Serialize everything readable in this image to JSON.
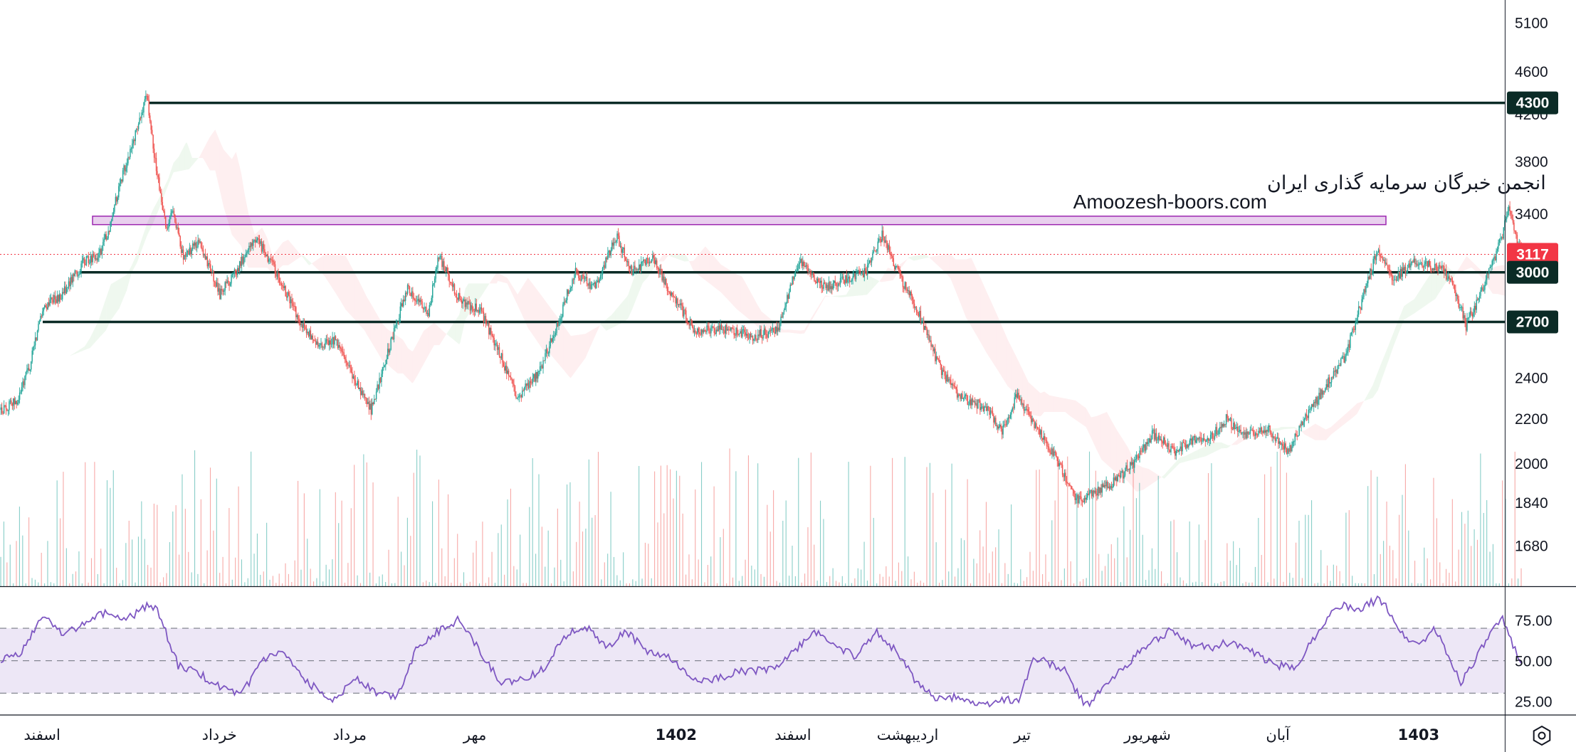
{
  "watermark": {
    "title": "انجمن خبرگان سرمایه گذاری ایران",
    "url": "Amoozesh-boors.com"
  },
  "chart_data": {
    "type": "candlestick",
    "price_axis": {
      "scale": "log",
      "ylim": [
        1540,
        5350
      ],
      "ticks": [
        5100,
        4600,
        4200,
        3800,
        3400,
        2400,
        2200,
        2000,
        1840,
        1680
      ]
    },
    "current_price": {
      "value": 3117,
      "label": "3117",
      "color": "#f23645"
    },
    "levels": [
      {
        "value": 4300,
        "label": "4300",
        "color": "#0b2b26"
      },
      {
        "value": 3000,
        "label": "3000",
        "color": "#0b2b26"
      },
      {
        "value": 2700,
        "label": "2700",
        "color": "#0b2b26"
      }
    ],
    "resistance_zone": {
      "low": 3320,
      "high": 3380,
      "color": "#9c27b0"
    },
    "candle_colors": {
      "up": "#26a69a",
      "down": "#ef5350"
    },
    "keypoints": [
      [
        0,
        2240
      ],
      [
        15,
        2280
      ],
      [
        28,
        2460
      ],
      [
        40,
        2780
      ],
      [
        60,
        2870
      ],
      [
        80,
        3070
      ],
      [
        95,
        3120
      ],
      [
        105,
        3320
      ],
      [
        115,
        3650
      ],
      [
        125,
        3900
      ],
      [
        135,
        4200
      ],
      [
        140,
        4350
      ],
      [
        148,
        3800
      ],
      [
        158,
        3300
      ],
      [
        165,
        3400
      ],
      [
        175,
        3100
      ],
      [
        190,
        3200
      ],
      [
        210,
        2860
      ],
      [
        225,
        3000
      ],
      [
        245,
        3230
      ],
      [
        260,
        3050
      ],
      [
        285,
        2720
      ],
      [
        305,
        2560
      ],
      [
        320,
        2600
      ],
      [
        340,
        2380
      ],
      [
        355,
        2240
      ],
      [
        375,
        2600
      ],
      [
        390,
        2900
      ],
      [
        410,
        2760
      ],
      [
        420,
        3100
      ],
      [
        440,
        2830
      ],
      [
        460,
        2760
      ],
      [
        480,
        2500
      ],
      [
        495,
        2300
      ],
      [
        512,
        2400
      ],
      [
        520,
        2480
      ],
      [
        535,
        2700
      ],
      [
        550,
        3000
      ],
      [
        570,
        2900
      ],
      [
        590,
        3240
      ],
      [
        605,
        3000
      ],
      [
        625,
        3100
      ],
      [
        640,
        2900
      ],
      [
        665,
        2650
      ],
      [
        690,
        2660
      ],
      [
        720,
        2620
      ],
      [
        745,
        2650
      ],
      [
        765,
        3070
      ],
      [
        790,
        2900
      ],
      [
        810,
        2960
      ],
      [
        830,
        3000
      ],
      [
        845,
        3250
      ],
      [
        860,
        3000
      ],
      [
        880,
        2750
      ],
      [
        900,
        2450
      ],
      [
        920,
        2300
      ],
      [
        945,
        2250
      ],
      [
        960,
        2140
      ],
      [
        975,
        2320
      ],
      [
        985,
        2220
      ],
      [
        1000,
        2100
      ],
      [
        1015,
        2000
      ],
      [
        1030,
        1850
      ],
      [
        1045,
        1870
      ],
      [
        1070,
        1930
      ],
      [
        1090,
        2020
      ],
      [
        1105,
        2130
      ],
      [
        1125,
        2050
      ],
      [
        1145,
        2100
      ],
      [
        1160,
        2110
      ],
      [
        1175,
        2200
      ],
      [
        1190,
        2120
      ],
      [
        1215,
        2150
      ],
      [
        1235,
        2050
      ],
      [
        1250,
        2200
      ],
      [
        1270,
        2350
      ],
      [
        1290,
        2520
      ],
      [
        1305,
        2820
      ],
      [
        1320,
        3150
      ],
      [
        1335,
        2950
      ],
      [
        1355,
        3060
      ],
      [
        1370,
        3050
      ],
      [
        1385,
        3000
      ],
      [
        1395,
        2870
      ],
      [
        1405,
        2680
      ],
      [
        1420,
        2880
      ],
      [
        1430,
        3050
      ],
      [
        1440,
        3250
      ],
      [
        1445,
        3450
      ],
      [
        1450,
        3300
      ],
      [
        1458,
        3117
      ]
    ],
    "rsi": {
      "levels": [
        70,
        50,
        30
      ],
      "ylim": [
        17,
        95
      ],
      "ticks": [
        75,
        50,
        25
      ],
      "color": "#7e57c2",
      "band_color": "#ede7f6",
      "keypoints": [
        [
          0,
          50
        ],
        [
          20,
          55
        ],
        [
          40,
          78
        ],
        [
          60,
          67
        ],
        [
          80,
          72
        ],
        [
          100,
          80
        ],
        [
          120,
          75
        ],
        [
          140,
          84
        ],
        [
          150,
          82
        ],
        [
          170,
          47
        ],
        [
          190,
          42
        ],
        [
          210,
          34
        ],
        [
          230,
          28
        ],
        [
          250,
          50
        ],
        [
          270,
          55
        ],
        [
          290,
          38
        ],
        [
          320,
          26
        ],
        [
          340,
          40
        ],
        [
          360,
          30
        ],
        [
          380,
          28
        ],
        [
          400,
          60
        ],
        [
          420,
          68
        ],
        [
          440,
          76
        ],
        [
          460,
          55
        ],
        [
          480,
          36
        ],
        [
          500,
          38
        ],
        [
          520,
          45
        ],
        [
          540,
          65
        ],
        [
          560,
          72
        ],
        [
          580,
          58
        ],
        [
          600,
          68
        ],
        [
          620,
          55
        ],
        [
          640,
          52
        ],
        [
          660,
          40
        ],
        [
          680,
          37
        ],
        [
          700,
          42
        ],
        [
          720,
          44
        ],
        [
          740,
          45
        ],
        [
          760,
          55
        ],
        [
          780,
          68
        ],
        [
          800,
          60
        ],
        [
          820,
          52
        ],
        [
          840,
          68
        ],
        [
          860,
          55
        ],
        [
          880,
          35
        ],
        [
          900,
          26
        ],
        [
          920,
          28
        ],
        [
          940,
          22
        ],
        [
          960,
          26
        ],
        [
          975,
          25
        ],
        [
          990,
          51
        ],
        [
          1000,
          50
        ],
        [
          1020,
          44
        ],
        [
          1040,
          22
        ],
        [
          1060,
          35
        ],
        [
          1080,
          48
        ],
        [
          1100,
          60
        ],
        [
          1120,
          68
        ],
        [
          1140,
          60
        ],
        [
          1160,
          58
        ],
        [
          1180,
          62
        ],
        [
          1200,
          55
        ],
        [
          1220,
          48
        ],
        [
          1240,
          45
        ],
        [
          1255,
          60
        ],
        [
          1270,
          75
        ],
        [
          1285,
          85
        ],
        [
          1300,
          80
        ],
        [
          1320,
          88
        ],
        [
          1330,
          82
        ],
        [
          1345,
          65
        ],
        [
          1360,
          60
        ],
        [
          1375,
          70
        ],
        [
          1390,
          50
        ],
        [
          1400,
          37
        ],
        [
          1415,
          52
        ],
        [
          1430,
          68
        ],
        [
          1440,
          75
        ],
        [
          1450,
          60
        ],
        [
          1458,
          50
        ]
      ]
    },
    "time_axis": [
      {
        "label": "اسفند",
        "bar": 40,
        "bold": false
      },
      {
        "label": "خرداد",
        "bar": 210,
        "bold": false
      },
      {
        "label": "مرداد",
        "bar": 335,
        "bold": false
      },
      {
        "label": "مهر",
        "bar": 455,
        "bold": false
      },
      {
        "label": "1402",
        "bar": 648,
        "bold": true
      },
      {
        "label": "اسفند",
        "bar": 760,
        "bold": false
      },
      {
        "label": "اردیبهشت",
        "bar": 870,
        "bold": false
      },
      {
        "label": "تیر",
        "bar": 980,
        "bold": false
      },
      {
        "label": "شهریور",
        "bar": 1100,
        "bold": false
      },
      {
        "label": "آبان",
        "bar": 1225,
        "bold": false
      },
      {
        "label": "1403",
        "bar": 1360,
        "bold": true
      }
    ]
  },
  "settings_icon": "hexagon-gear-icon"
}
